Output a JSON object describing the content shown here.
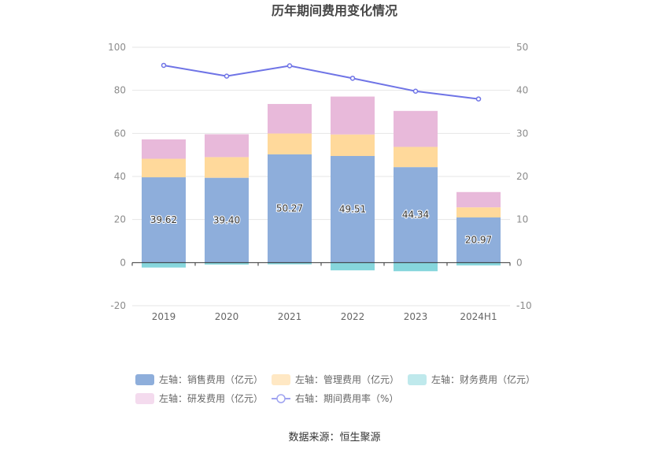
{
  "chart_data": {
    "type": "bar",
    "title": "历年期间费用变化情况",
    "categories": [
      "2019",
      "2020",
      "2021",
      "2022",
      "2023",
      "2024H1"
    ],
    "left_axis": {
      "ylim": [
        -20,
        100
      ],
      "ticks": [
        "-20",
        "0",
        "20",
        "40",
        "60",
        "80",
        "100"
      ]
    },
    "right_axis": {
      "ylim": [
        -10,
        50
      ],
      "ticks": [
        "-10",
        "0",
        "10",
        "20",
        "30",
        "40",
        "50"
      ]
    },
    "stacked": true,
    "series": [
      {
        "name": "左轴：销售费用（亿元）",
        "axis": "left",
        "color": "#8eaedb",
        "values": [
          39.62,
          39.4,
          50.27,
          49.51,
          44.34,
          20.97
        ],
        "labels": [
          "39.62",
          "39.40",
          "50.27",
          "49.51",
          "44.34",
          "20.97"
        ]
      },
      {
        "name": "左轴：管理费用（亿元）",
        "axis": "left",
        "color": "#ffd99b",
        "values": [
          8.6,
          9.6,
          9.7,
          10.0,
          9.4,
          4.7
        ]
      },
      {
        "name": "左轴：财务费用（亿元）",
        "axis": "left",
        "color": "#86d6dc",
        "values": [
          -2.3,
          -0.9,
          -0.8,
          -3.6,
          -4.0,
          -1.3
        ]
      },
      {
        "name": "左轴：研发费用（亿元）",
        "axis": "left",
        "color": "#e8b9da",
        "values": [
          9.0,
          10.6,
          13.7,
          17.6,
          16.7,
          7.1
        ]
      },
      {
        "name": "右轴：期间费用率（%）",
        "axis": "right",
        "type": "line",
        "color": "#6f74e6",
        "values": [
          45.8,
          43.3,
          45.7,
          42.8,
          39.8,
          38.0
        ]
      }
    ],
    "legend_position": "bottom",
    "grid": true
  },
  "legend": [
    {
      "label": "左轴：销售费用（亿元）",
      "color": "#8eaedb",
      "kind": "box"
    },
    {
      "label": "左轴：管理费用（亿元）",
      "color": "#ffe8c4",
      "kind": "box"
    },
    {
      "label": "左轴：财务费用（亿元）",
      "color": "#bfe9ec",
      "kind": "box"
    },
    {
      "label": "左轴：研发费用（亿元）",
      "color": "#f4dbee",
      "kind": "box"
    },
    {
      "label": "右轴：期间费用率（%）",
      "color": "#9fa3f0",
      "kind": "line"
    }
  ],
  "source": "数据来源：恒生聚源"
}
